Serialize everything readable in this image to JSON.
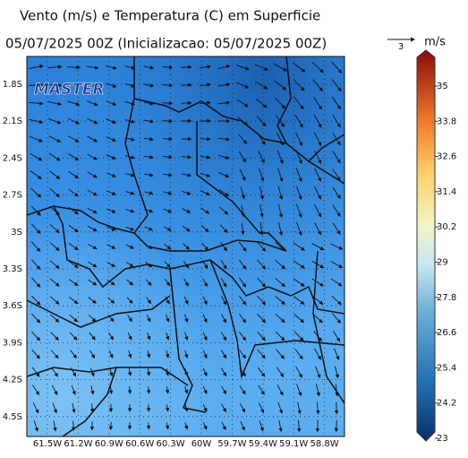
{
  "header": {
    "title": "Vento (m/s) e Temperatura (C) em Superficie",
    "subtitle": "05/07/2025 00Z (Inicializacao: 05/07/2025 00Z)"
  },
  "logo": "MASTER",
  "reference_vector": {
    "label": "3",
    "unit": "m/s"
  },
  "map": {
    "lat_labels": [
      "1.8S",
      "2.1S",
      "2.4S",
      "2.7S",
      "3S",
      "3.3S",
      "3.6S",
      "3.9S",
      "4.2S",
      "4.5S"
    ],
    "lon_labels": [
      "61.5W",
      "61.2W",
      "60.9W",
      "60.6W",
      "60.3W",
      "60W",
      "59.7W",
      "59.4W",
      "59.1W",
      "58.8W"
    ]
  },
  "colorbar": {
    "ticks": [
      35,
      33.8,
      32.6,
      31.4,
      30.2,
      29,
      27.8,
      26.6,
      25.4,
      24.2,
      23
    ]
  }
}
